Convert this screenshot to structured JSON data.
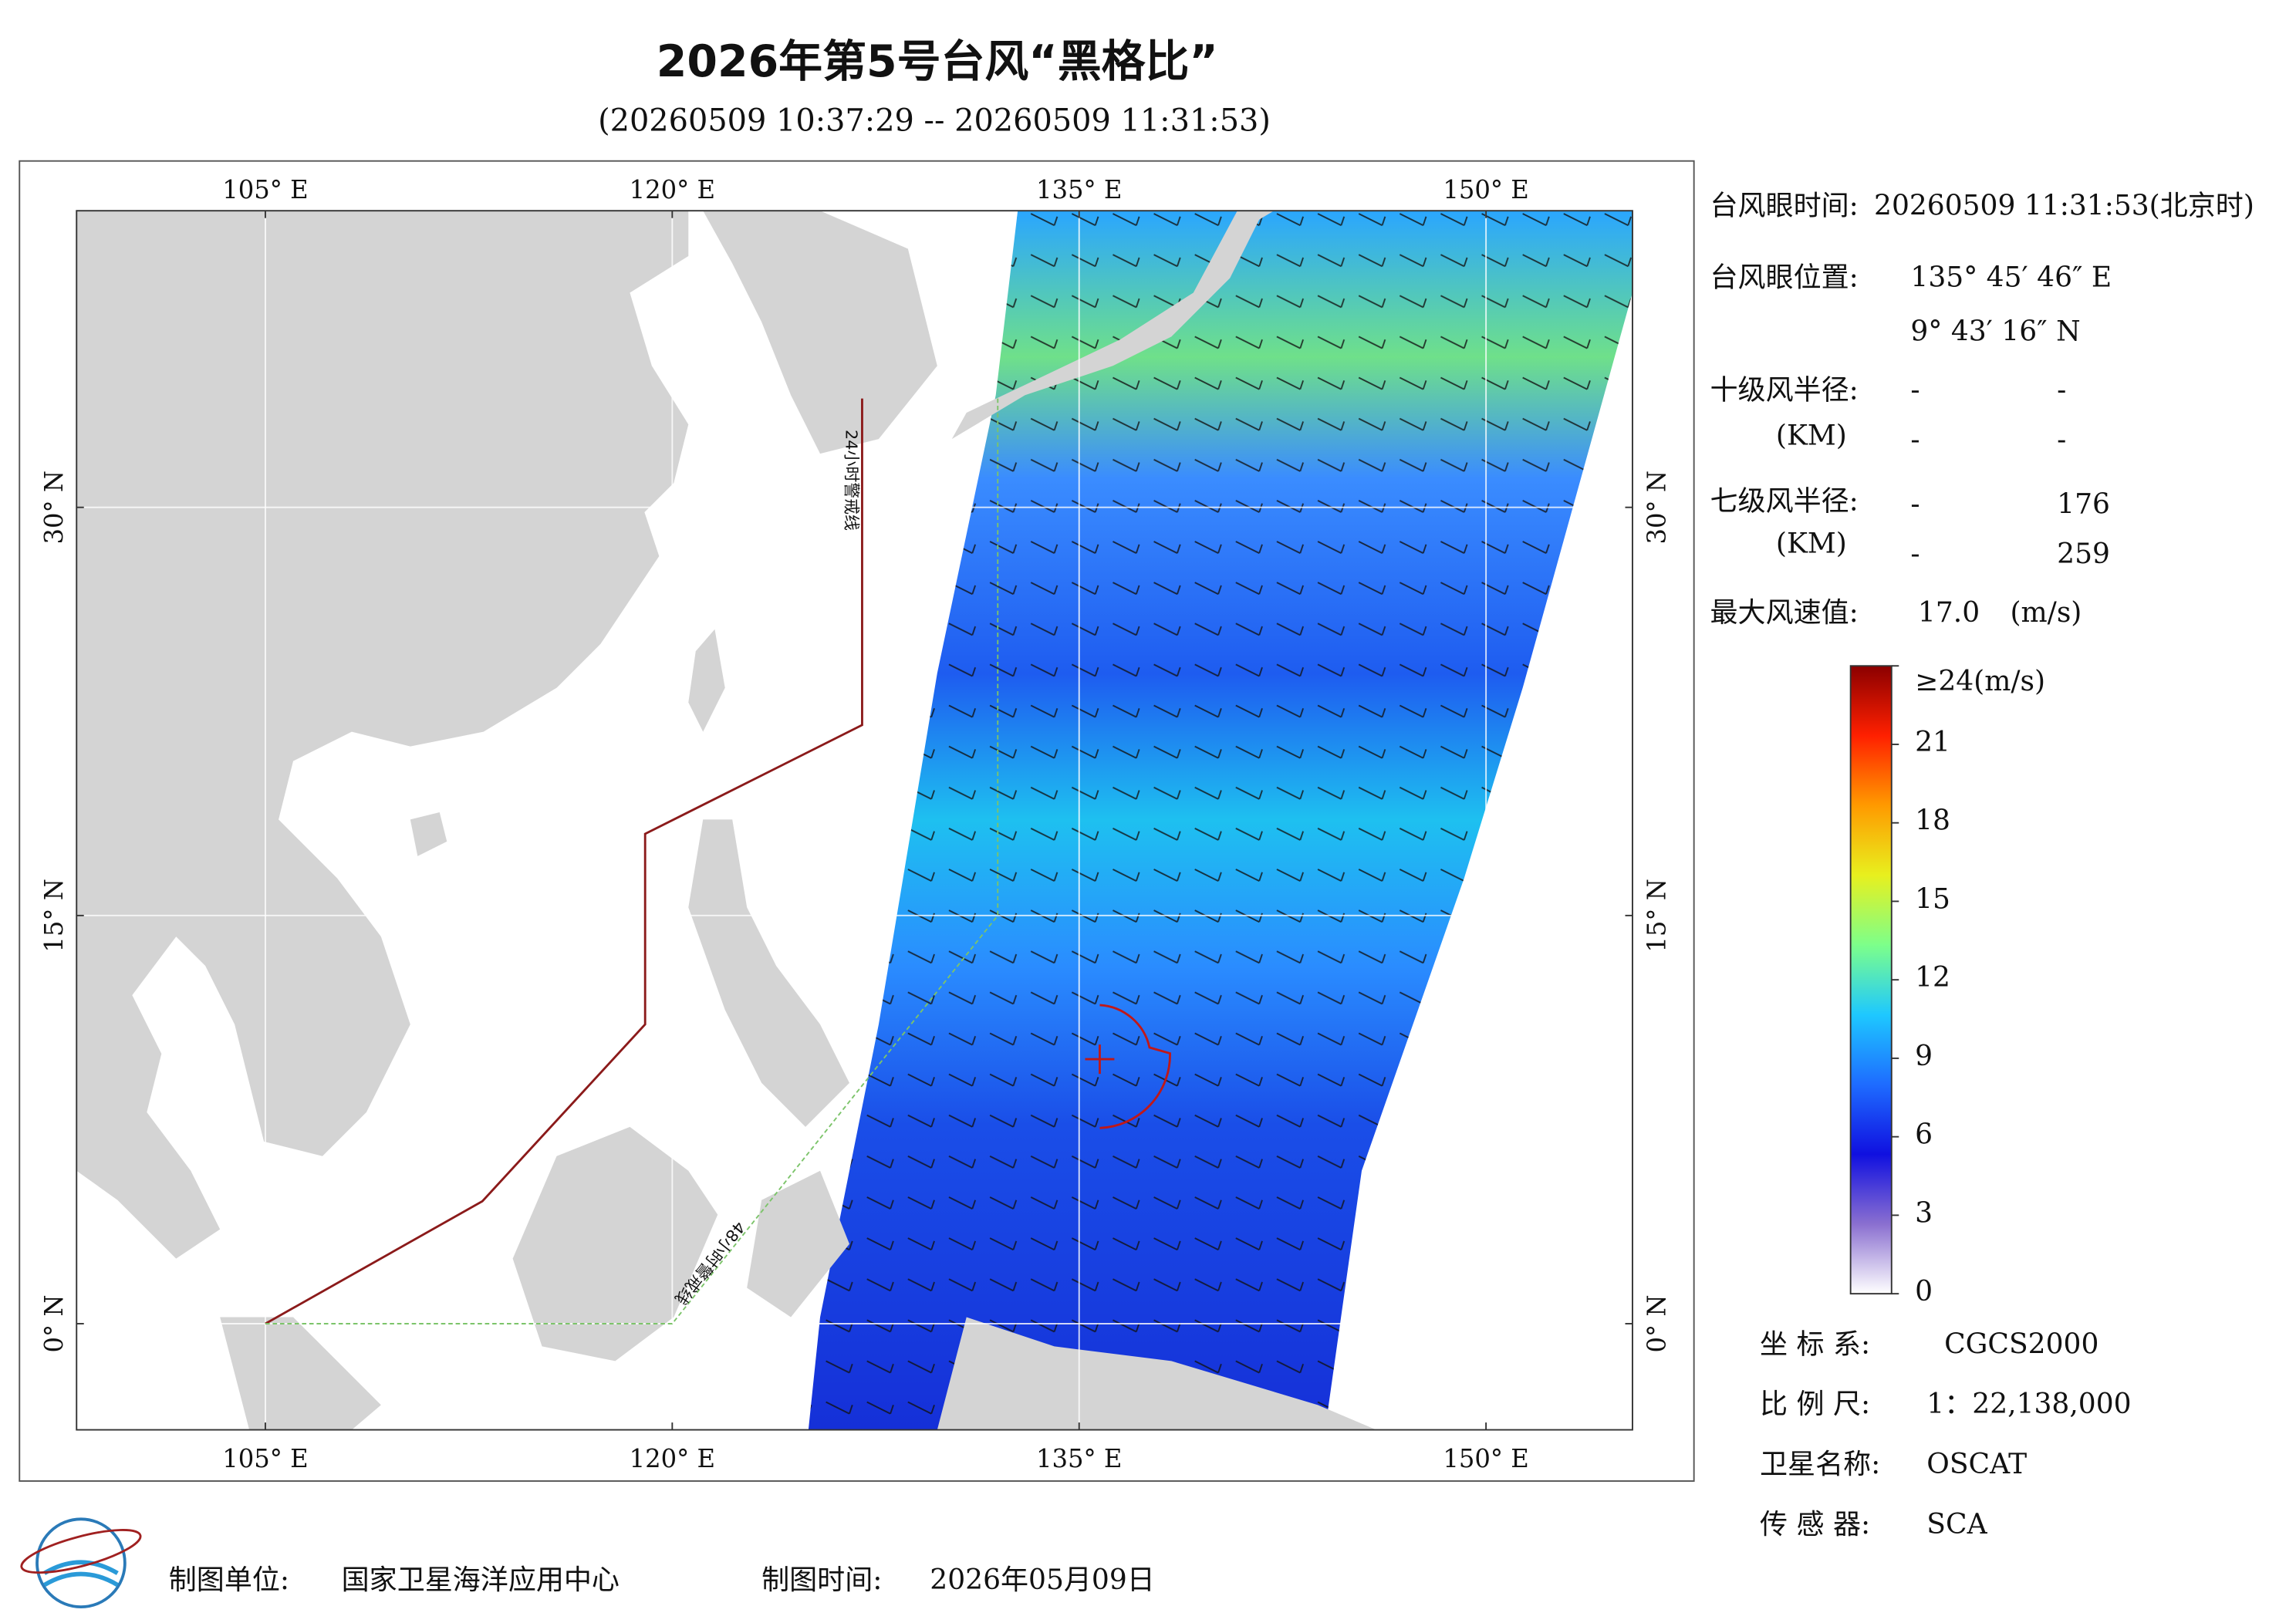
{
  "header": {
    "title": "2026年第5号台风“黑格比”",
    "subtitle": "(20260509 10:37:29 -- 20260509 11:31:53)"
  },
  "map": {
    "xlim": [
      98.04,
      155.4
    ],
    "ylim": [
      -3.9,
      40.9
    ],
    "lon_ticks": [
      {
        "value": 105,
        "label": "105° E"
      },
      {
        "value": 120,
        "label": "120° E"
      },
      {
        "value": 135,
        "label": "135° E"
      },
      {
        "value": 150,
        "label": "150° E"
      }
    ],
    "lat_ticks": [
      {
        "value": 0,
        "label": "0° N"
      },
      {
        "value": 15,
        "label": "15° N"
      },
      {
        "value": 30,
        "label": "30° N"
      }
    ],
    "warning_lines": [
      {
        "label": "24小时警戒线",
        "color": "#8b1a1a",
        "points": [
          [
            127,
            34
          ],
          [
            127,
            22
          ],
          [
            119,
            18
          ],
          [
            119,
            11
          ],
          [
            113,
            4.5
          ],
          [
            105,
            0
          ]
        ]
      },
      {
        "label": "48小时警戒线",
        "color": "#7cc46a",
        "points": [
          [
            105,
            0
          ],
          [
            120,
            0
          ],
          [
            132,
            15
          ],
          [
            132,
            34
          ]
        ]
      }
    ],
    "eye": {
      "lon": 135.76,
      "lat": 9.72
    }
  },
  "panel": {
    "eye_time_label": "台风眼时间:",
    "eye_time": "20260509 11:31:53(北京时)",
    "eye_pos_label": "台风眼位置:",
    "eye_lon": "135° 45′ 46″ E",
    "eye_lat": "9° 43′ 16″ N",
    "r10_label": "十级风半径:",
    "r10_unit": "(KM)",
    "r10": [
      [
        "-",
        "-"
      ],
      [
        "-",
        "-"
      ]
    ],
    "r7_label": "七级风半径:",
    "r7_unit": "(KM)",
    "r7": [
      [
        "-",
        176
      ],
      [
        "-",
        259
      ]
    ],
    "max_wind_label": "最大风速值:",
    "max_wind": "17.0",
    "max_wind_unit": "(m/s)"
  },
  "colorbar": {
    "lim": [
      0,
      24
    ],
    "ticks": [
      0,
      3,
      6,
      9,
      12,
      15,
      18,
      21,
      {
        "value": 24,
        "label": "≥24(m/s)"
      }
    ],
    "colors": [
      "#ffffff",
      "#8a6fd0",
      "#1010e0",
      "#1e6cff",
      "#1ec8ff",
      "#7dff8a",
      "#e8f01e",
      "#ff9a00",
      "#ff2000",
      "#8b0000"
    ]
  },
  "info": {
    "rows": [
      [
        "坐 标 系:",
        "CGCS2000"
      ],
      [
        "比 例 尺:",
        "1：22,138,000"
      ],
      [
        "卫星名称:",
        "OSCAT"
      ],
      [
        "传 感 器:",
        "SCA"
      ]
    ]
  },
  "footer": {
    "unit_label": "制图单位:",
    "unit": "国家卫星海洋应用中心",
    "time_label": "制图时间:",
    "time": "2026年05月09日"
  }
}
